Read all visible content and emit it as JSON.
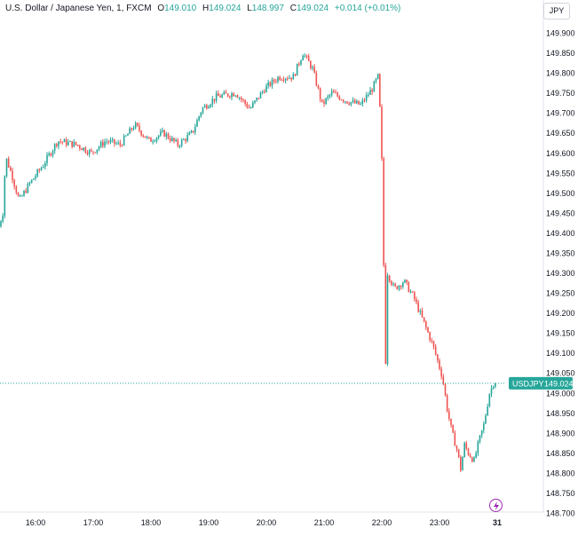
{
  "header": {
    "symbol_title": "U.S. Dollar / Japanese Yen, 1, FXCM",
    "open_label": "O",
    "open_value": "149.010",
    "high_label": "H",
    "high_value": "149.024",
    "low_label": "L",
    "low_value": "148.997",
    "close_label": "C",
    "close_value": "149.024",
    "change": "+0.014 (+0.01%)",
    "currency_button": "JPY"
  },
  "price_tag": {
    "symbol": "USDJPY",
    "price": "149.024"
  },
  "colors": {
    "up": "#26a69a",
    "down": "#ef5350",
    "last_price_line": "#26a69a",
    "bolt": "#9c27b0"
  },
  "icons": {
    "bolt": "lightning-bolt-icon"
  },
  "chart_data": {
    "type": "candlestick",
    "title": "U.S. Dollar / Japanese Yen, 1, FXCM",
    "xlabel": "",
    "ylabel": "",
    "ylim": [
      148.7,
      149.9
    ],
    "grid": false,
    "y_ticks": [
      "149.900",
      "149.850",
      "149.800",
      "149.750",
      "149.700",
      "149.650",
      "149.600",
      "149.550",
      "149.500",
      "149.450",
      "149.400",
      "149.350",
      "149.300",
      "149.250",
      "149.200",
      "149.150",
      "149.100",
      "149.050",
      "149.000",
      "148.950",
      "148.900",
      "148.850",
      "148.800",
      "148.750",
      "148.700"
    ],
    "x_ticks": [
      "16:00",
      "17:00",
      "18:00",
      "19:00",
      "20:00",
      "21:00",
      "22:00",
      "23:00",
      "31"
    ],
    "last_price": 149.024,
    "price_path": [
      {
        "t": "15:22",
        "p": 149.4
      },
      {
        "t": "15:28",
        "p": 149.45
      },
      {
        "t": "15:31",
        "p": 149.59
      },
      {
        "t": "15:38",
        "p": 149.54
      },
      {
        "t": "15:45",
        "p": 149.48
      },
      {
        "t": "15:55",
        "p": 149.52
      },
      {
        "t": "16:10",
        "p": 149.57
      },
      {
        "t": "16:25",
        "p": 149.63
      },
      {
        "t": "16:45",
        "p": 149.62
      },
      {
        "t": "17:00",
        "p": 149.6
      },
      {
        "t": "17:15",
        "p": 149.63
      },
      {
        "t": "17:30",
        "p": 149.62
      },
      {
        "t": "17:45",
        "p": 149.67
      },
      {
        "t": "18:00",
        "p": 149.63
      },
      {
        "t": "18:15",
        "p": 149.65
      },
      {
        "t": "18:30",
        "p": 149.62
      },
      {
        "t": "18:45",
        "p": 149.65
      },
      {
        "t": "18:55",
        "p": 149.71
      },
      {
        "t": "19:10",
        "p": 149.74
      },
      {
        "t": "19:30",
        "p": 149.75
      },
      {
        "t": "19:45",
        "p": 149.71
      },
      {
        "t": "20:00",
        "p": 149.76
      },
      {
        "t": "20:15",
        "p": 149.79
      },
      {
        "t": "20:30",
        "p": 149.79
      },
      {
        "t": "20:40",
        "p": 149.85
      },
      {
        "t": "20:50",
        "p": 149.81
      },
      {
        "t": "21:00",
        "p": 149.72
      },
      {
        "t": "21:10",
        "p": 149.75
      },
      {
        "t": "21:25",
        "p": 149.73
      },
      {
        "t": "21:40",
        "p": 149.72
      },
      {
        "t": "21:52",
        "p": 149.76
      },
      {
        "t": "21:58",
        "p": 149.79
      },
      {
        "t": "22:00",
        "p": 149.71
      },
      {
        "t": "22:02",
        "p": 149.58
      },
      {
        "t": "22:04",
        "p": 149.32
      },
      {
        "t": "22:06",
        "p": 149.08
      },
      {
        "t": "22:08",
        "p": 149.3
      },
      {
        "t": "22:15",
        "p": 149.26
      },
      {
        "t": "22:25",
        "p": 149.28
      },
      {
        "t": "22:35",
        "p": 149.24
      },
      {
        "t": "22:45",
        "p": 149.18
      },
      {
        "t": "22:55",
        "p": 149.12
      },
      {
        "t": "23:05",
        "p": 149.04
      },
      {
        "t": "23:10",
        "p": 148.96
      },
      {
        "t": "23:15",
        "p": 148.9
      },
      {
        "t": "23:20",
        "p": 148.86
      },
      {
        "t": "23:24",
        "p": 148.81
      },
      {
        "t": "23:28",
        "p": 148.87
      },
      {
        "t": "23:32",
        "p": 148.85
      },
      {
        "t": "23:38",
        "p": 148.83
      },
      {
        "t": "23:42",
        "p": 148.87
      },
      {
        "t": "23:48",
        "p": 148.92
      },
      {
        "t": "23:54",
        "p": 149.0
      },
      {
        "t": "23:58",
        "p": 149.024
      }
    ]
  }
}
